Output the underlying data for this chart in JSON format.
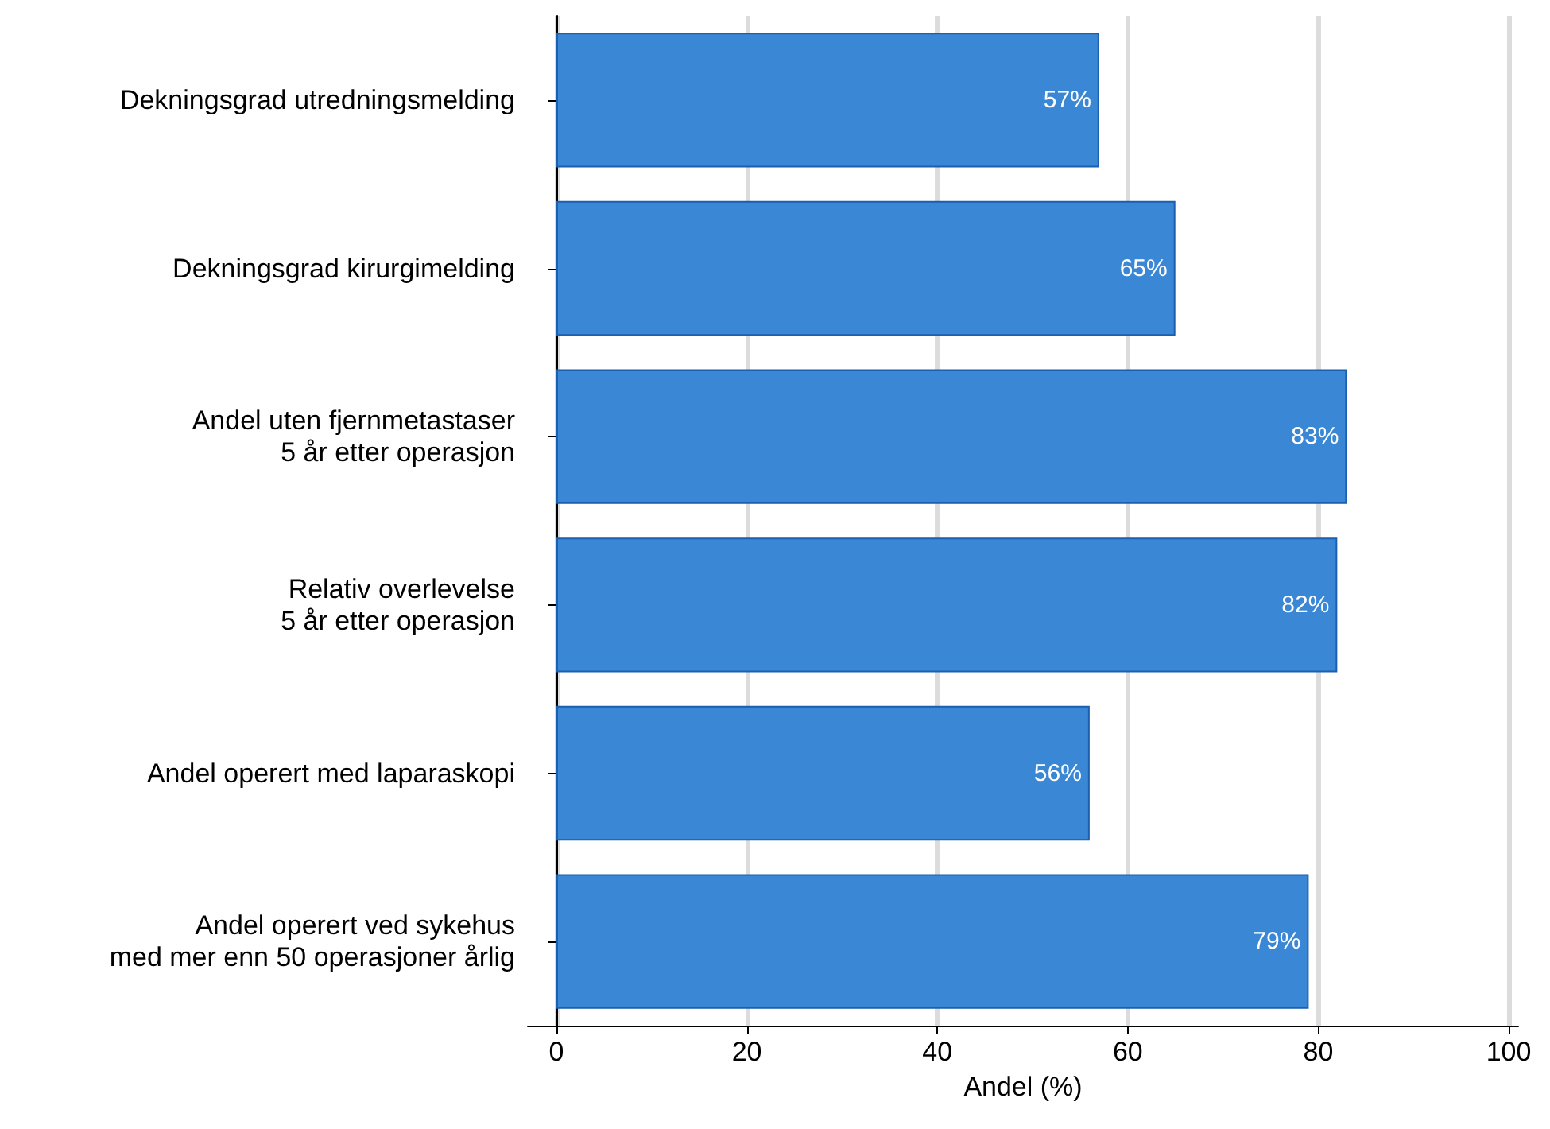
{
  "chart_data": {
    "type": "bar",
    "orientation": "horizontal",
    "xlabel": "Andel (%)",
    "categories": [
      "Dekningsgrad utredningsmelding",
      "Dekningsgrad kirurgimelding",
      "Andel uten fjernmetastaser\n5 år etter operasjon",
      "Relativ overlevelse\n5 år etter operasjon",
      "Andel operert med laparaskopi",
      "Andel operert ved sykehus\nmed mer enn 50 operasjoner årlig"
    ],
    "values": [
      57,
      65,
      83,
      82,
      56,
      79
    ],
    "value_labels": [
      "57%",
      "65%",
      "83%",
      "82%",
      "56%",
      "79%"
    ],
    "color": "#3a87d6",
    "xlim": [
      -3,
      101
    ],
    "xticks": [
      0,
      20,
      40,
      60,
      80,
      100
    ],
    "grid": "x"
  }
}
